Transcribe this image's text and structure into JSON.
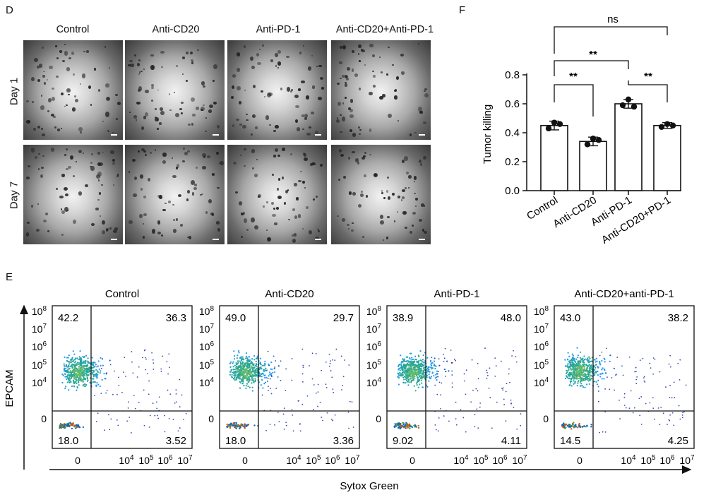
{
  "panel_d": {
    "letter": "D",
    "columns": [
      "Control",
      "Anti-CD20",
      "Anti-PD-1",
      "Anti-CD20+Anti-PD-1"
    ],
    "rows": [
      "Day 1",
      "Day 7"
    ]
  },
  "panel_f": {
    "letter": "F",
    "ylabel": "Tumor killing",
    "sig_top": "ns",
    "sig_mid": "**",
    "sig_left": "**",
    "sig_right": "**"
  },
  "panel_e": {
    "letter": "E",
    "ylabel": "EPCAM",
    "xlabel": "Sytox Green",
    "y_ticks": [
      {
        "base": "10",
        "exp": "8"
      },
      {
        "base": "10",
        "exp": "7"
      },
      {
        "base": "10",
        "exp": "6"
      },
      {
        "base": "10",
        "exp": "5"
      },
      {
        "base": "10",
        "exp": "4"
      },
      {
        "base": "0",
        "exp": ""
      }
    ],
    "x_ticks": [
      {
        "base": "0",
        "exp": ""
      },
      {
        "base": "10",
        "exp": "4"
      },
      {
        "base": "10",
        "exp": "5"
      },
      {
        "base": "10",
        "exp": "6"
      },
      {
        "base": "10",
        "exp": "7"
      }
    ],
    "plots": [
      {
        "title": "Control",
        "ul": "42.2",
        "ur": "36.3",
        "ll": "18.0",
        "lr": "3.52"
      },
      {
        "title": "Anti-CD20",
        "ul": "49.0",
        "ur": "29.7",
        "ll": "18.0",
        "lr": "3.36"
      },
      {
        "title": "Anti-PD-1",
        "ul": "38.9",
        "ur": "48.0",
        "ll": "9.02",
        "lr": "4.11"
      },
      {
        "title": "Anti-CD20+anti-PD-1",
        "ul": "43.0",
        "ur": "38.2",
        "ll": "14.5",
        "lr": "4.25"
      }
    ]
  },
  "chart_data": {
    "type": "bar",
    "title": "",
    "categories": [
      "Control",
      "Anti-CD20",
      "Anti-PD-1",
      "Anti-CD20+PD-1"
    ],
    "values": [
      0.45,
      0.34,
      0.6,
      0.45
    ],
    "errors": [
      0.03,
      0.03,
      0.03,
      0.02
    ],
    "points": [
      [
        0.47,
        0.43,
        0.46
      ],
      [
        0.36,
        0.32,
        0.35
      ],
      [
        0.63,
        0.59,
        0.58
      ],
      [
        0.46,
        0.44,
        0.45
      ]
    ],
    "xlabel": "",
    "ylabel": "Tumor killing",
    "ylim": [
      0,
      0.8
    ],
    "yticks": [
      "0.0",
      "0.2",
      "0.4",
      "0.6",
      "0.8"
    ]
  }
}
